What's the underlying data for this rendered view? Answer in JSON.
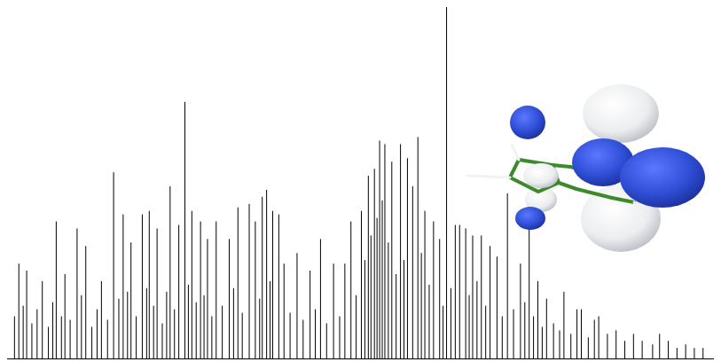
{
  "chart_data": {
    "type": "stem",
    "color": "#000000",
    "tick_labels": false,
    "grid": false,
    "xlim": [
      0,
      813
    ],
    "ylim": [
      0,
      100
    ],
    "x": [
      8,
      13,
      18,
      22,
      28,
      34,
      40,
      47,
      52,
      56,
      62,
      66,
      72,
      80,
      85,
      90,
      97,
      103,
      108,
      115,
      122,
      128,
      133,
      138,
      142,
      148,
      155,
      160,
      163,
      168,
      172,
      178,
      183,
      187,
      192,
      197,
      204,
      208,
      212,
      217,
      222,
      226,
      230,
      235,
      240,
      247,
      255,
      260,
      265,
      270,
      278,
      285,
      290,
      293,
      298,
      302,
      305,
      312,
      318,
      325,
      333,
      340,
      348,
      354,
      360,
      367,
      375,
      382,
      388,
      395,
      401,
      407,
      411,
      415,
      418,
      422,
      425,
      428,
      431,
      434,
      438,
      442,
      447,
      452,
      456,
      460,
      466,
      472,
      476,
      480,
      485,
      490,
      497,
      501,
      505,
      510,
      515,
      520,
      527,
      531,
      535,
      540,
      545,
      550,
      555,
      563,
      569,
      575,
      582,
      590,
      595,
      600,
      605,
      610,
      615,
      620,
      628,
      635,
      640,
      648,
      655,
      660,
      668,
      675,
      680,
      690,
      700,
      710,
      720,
      730,
      742,
      750,
      760,
      770,
      780,
      790,
      800
    ],
    "values": [
      12,
      27,
      15,
      25,
      10,
      14,
      22,
      9,
      16,
      39,
      12,
      24,
      11,
      37,
      18,
      32,
      9,
      14,
      22,
      11,
      53,
      17,
      41,
      19,
      33,
      12,
      41,
      20,
      42,
      15,
      37,
      10,
      19,
      49,
      14,
      38,
      73,
      21,
      42,
      16,
      39,
      18,
      34,
      12,
      39,
      15,
      34,
      20,
      43,
      13,
      44,
      39,
      17,
      46,
      48,
      22,
      42,
      41,
      27,
      13,
      30,
      11,
      25,
      14,
      34,
      10,
      27,
      12,
      27,
      39,
      18,
      42,
      28,
      52,
      35,
      54,
      40,
      62,
      45,
      61,
      33,
      56,
      24,
      61,
      28,
      57,
      49,
      63,
      30,
      42,
      21,
      39,
      34,
      15,
      100,
      20,
      38,
      38,
      37,
      18,
      35,
      22,
      35,
      15,
      32,
      29,
      12,
      47,
      14,
      27,
      16,
      41,
      12,
      22,
      9,
      17,
      10,
      8,
      19,
      7,
      14,
      14,
      6,
      11,
      12,
      7,
      8,
      5,
      7,
      5,
      4,
      7,
      5,
      3,
      4,
      3,
      3
    ]
  }
}
